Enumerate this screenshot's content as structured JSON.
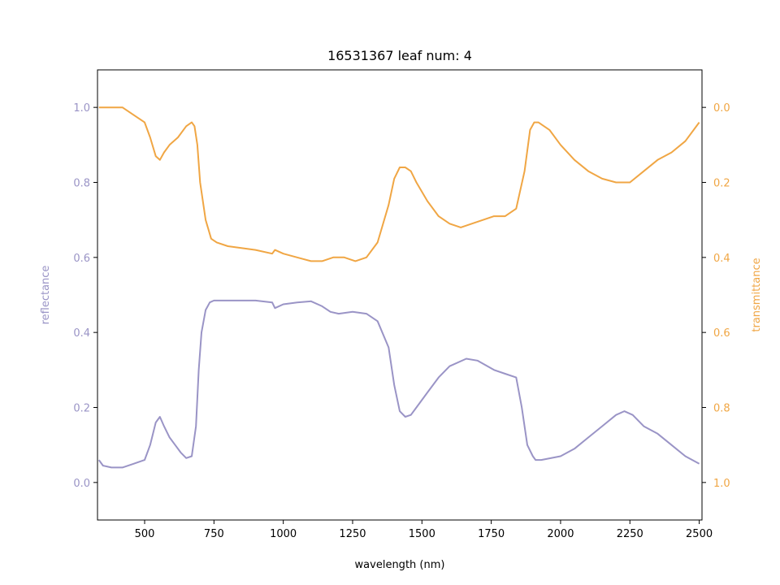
{
  "chart_data": {
    "type": "line",
    "title": "16531367 leaf num: 4",
    "xlabel": "wavelength (nm)",
    "xlim": [
      330,
      2510
    ],
    "xticks": [
      500,
      750,
      1000,
      1250,
      1500,
      1750,
      2000,
      2250,
      2500
    ],
    "left_axis": {
      "label": "reflectance",
      "ylim": [
        -0.1,
        1.1
      ],
      "ticks": [
        "0.0",
        "0.2",
        "0.4",
        "0.6",
        "0.8",
        "1.0"
      ],
      "tick_values": [
        0.0,
        0.2,
        0.4,
        0.6,
        0.8,
        1.0
      ],
      "color": "#9a94c6"
    },
    "right_axis": {
      "label": "transmittance",
      "ylim": [
        1.1,
        -0.1
      ],
      "inverted": true,
      "ticks": [
        "0.0",
        "0.2",
        "0.4",
        "0.6",
        "0.8",
        "1.0"
      ],
      "tick_values": [
        0.0,
        0.2,
        0.4,
        0.6,
        0.8,
        1.0
      ],
      "color": "#f0a644"
    },
    "series": [
      {
        "axis": "left",
        "color": "#9a94c6",
        "x": [
          335,
          350,
          380,
          420,
          460,
          500,
          520,
          540,
          555,
          570,
          590,
          610,
          630,
          650,
          670,
          685,
          695,
          705,
          720,
          735,
          750,
          800,
          900,
          960,
          970,
          1000,
          1050,
          1100,
          1140,
          1170,
          1200,
          1250,
          1300,
          1340,
          1380,
          1400,
          1420,
          1440,
          1460,
          1480,
          1520,
          1560,
          1600,
          1660,
          1700,
          1760,
          1800,
          1840,
          1860,
          1880,
          1900,
          1910,
          1930,
          2000,
          2050,
          2100,
          2150,
          2200,
          2230,
          2260,
          2300,
          2350,
          2400,
          2450,
          2500
        ],
        "y": [
          0.06,
          0.045,
          0.04,
          0.04,
          0.05,
          0.06,
          0.1,
          0.16,
          0.175,
          0.15,
          0.12,
          0.1,
          0.08,
          0.065,
          0.07,
          0.15,
          0.3,
          0.4,
          0.46,
          0.48,
          0.485,
          0.485,
          0.485,
          0.48,
          0.465,
          0.475,
          0.48,
          0.483,
          0.47,
          0.455,
          0.45,
          0.455,
          0.45,
          0.43,
          0.36,
          0.26,
          0.19,
          0.175,
          0.18,
          0.2,
          0.24,
          0.28,
          0.31,
          0.33,
          0.325,
          0.3,
          0.29,
          0.28,
          0.2,
          0.1,
          0.07,
          0.06,
          0.06,
          0.07,
          0.09,
          0.12,
          0.15,
          0.18,
          0.19,
          0.18,
          0.15,
          0.13,
          0.1,
          0.07,
          0.05
        ]
      },
      {
        "axis": "right",
        "color": "#f0a644",
        "x": [
          335,
          350,
          380,
          420,
          460,
          500,
          520,
          540,
          555,
          570,
          590,
          620,
          650,
          670,
          680,
          690,
          700,
          720,
          740,
          760,
          800,
          900,
          960,
          970,
          1000,
          1050,
          1100,
          1140,
          1180,
          1220,
          1260,
          1300,
          1340,
          1380,
          1400,
          1420,
          1440,
          1460,
          1480,
          1520,
          1560,
          1600,
          1640,
          1680,
          1720,
          1760,
          1800,
          1840,
          1870,
          1890,
          1905,
          1920,
          1960,
          2000,
          2050,
          2100,
          2150,
          2200,
          2250,
          2300,
          2350,
          2400,
          2450,
          2500
        ],
        "y": [
          0.0,
          0.0,
          0.0,
          0.0,
          0.02,
          0.04,
          0.08,
          0.13,
          0.14,
          0.12,
          0.1,
          0.08,
          0.05,
          0.04,
          0.05,
          0.1,
          0.2,
          0.3,
          0.35,
          0.36,
          0.37,
          0.38,
          0.39,
          0.38,
          0.39,
          0.4,
          0.41,
          0.41,
          0.4,
          0.4,
          0.41,
          0.4,
          0.36,
          0.26,
          0.19,
          0.16,
          0.16,
          0.17,
          0.2,
          0.25,
          0.29,
          0.31,
          0.32,
          0.31,
          0.3,
          0.29,
          0.29,
          0.27,
          0.17,
          0.06,
          0.04,
          0.04,
          0.06,
          0.1,
          0.14,
          0.17,
          0.19,
          0.2,
          0.2,
          0.17,
          0.14,
          0.12,
          0.09,
          0.04
        ]
      }
    ],
    "grid": false,
    "legend": "none"
  }
}
